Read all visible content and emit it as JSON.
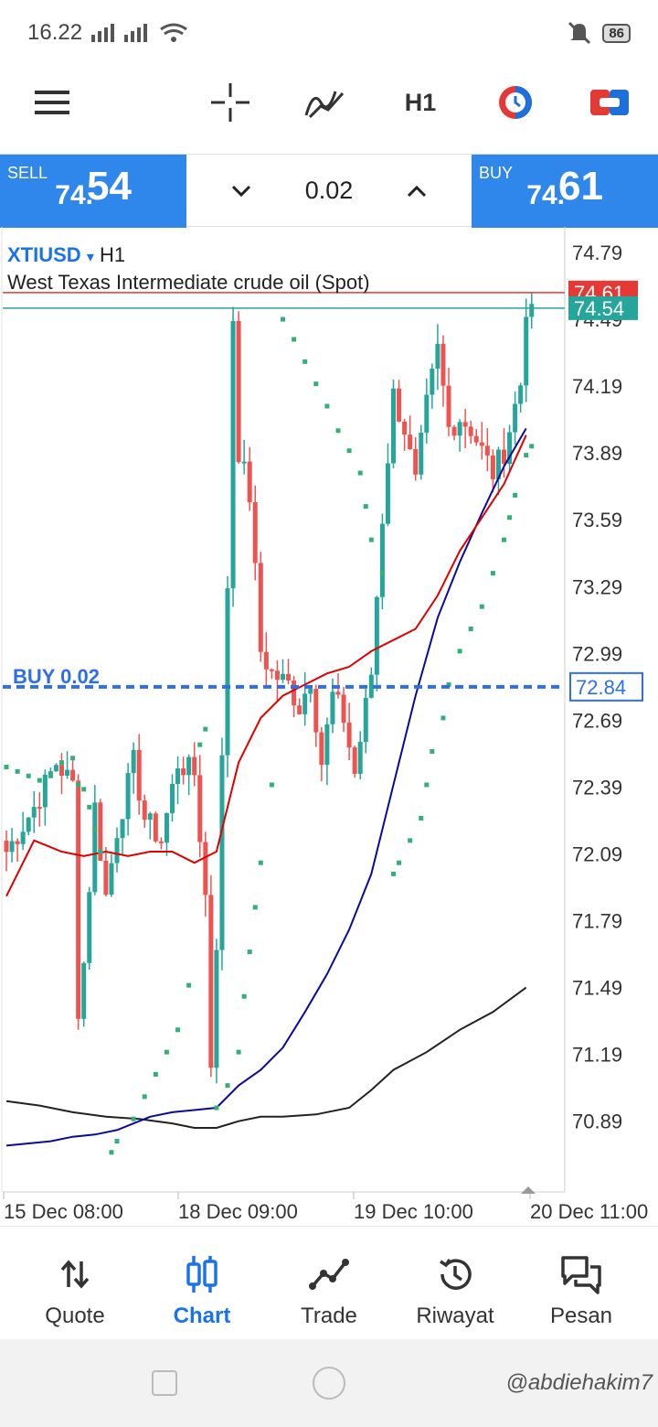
{
  "status": {
    "time": "16.22",
    "battery": "86"
  },
  "toolbar": {
    "timeframe": "H1",
    "icons": [
      "crosshair-icon",
      "indicators-icon",
      "timeframe",
      "chart-color-icon",
      "trade-toggle-icon"
    ]
  },
  "trade_panel": {
    "sell_label": "SELL",
    "sell_price_small": "74.",
    "sell_price_big": "54",
    "buy_label": "BUY",
    "buy_price_small": "74.",
    "buy_price_big": "61",
    "lot": "0.02"
  },
  "chart": {
    "symbol": "XTIUSD",
    "symbol_arrow": "▾",
    "timeframe": "H1",
    "description": "West Texas Intermediate crude oil (Spot)",
    "order_label": "BUY 0.02",
    "order_price": "72.84",
    "ask_tag": "74.61",
    "bid_tag": "74.54",
    "colors": {
      "bull": "#26a69a",
      "bear": "#ef5350",
      "ask_line": "#e53935",
      "bid_line": "#26a69a",
      "order_line": "#2f6fe6",
      "ma_red": "#e00000",
      "ma_blue": "#0a0a9e",
      "ma_black": "#222222",
      "sar": "#33b07a"
    }
  },
  "chart_data": {
    "type": "candlestick",
    "y_ticks": [
      "74.79",
      "74.49",
      "74.19",
      "73.89",
      "73.59",
      "73.29",
      "72.99",
      "72.69",
      "72.39",
      "72.09",
      "71.79",
      "71.49",
      "71.19",
      "70.89"
    ],
    "x_ticks": [
      "15 Dec 08:00",
      "18 Dec 09:00",
      "19 Dec 10:00",
      "20 Dec 11:00"
    ],
    "ylim": [
      70.72,
      74.82
    ],
    "ask": 74.61,
    "bid": 74.54,
    "order_price": 72.84,
    "anchors": [
      [
        0,
        72.1
      ],
      [
        5,
        72.3
      ],
      [
        9,
        72.5
      ],
      [
        12,
        72.4
      ],
      [
        13,
        71.4
      ],
      [
        14,
        71.6
      ],
      [
        16,
        72.3
      ],
      [
        18,
        71.9
      ],
      [
        20,
        72.2
      ],
      [
        23,
        72.5
      ],
      [
        25,
        72.25
      ],
      [
        28,
        72.15
      ],
      [
        31,
        72.5
      ],
      [
        34,
        72.45
      ],
      [
        36,
        71.9
      ],
      [
        37,
        71.15
      ],
      [
        38,
        71.7
      ],
      [
        40,
        73.3
      ],
      [
        41,
        74.5
      ],
      [
        42,
        73.9
      ],
      [
        44,
        73.7
      ],
      [
        46,
        73.0
      ],
      [
        48,
        72.9
      ],
      [
        51,
        72.85
      ],
      [
        53,
        72.75
      ],
      [
        55,
        72.88
      ],
      [
        57,
        72.5
      ],
      [
        59,
        72.8
      ],
      [
        61,
        72.7
      ],
      [
        63,
        72.45
      ],
      [
        66,
        72.9
      ],
      [
        68,
        73.6
      ],
      [
        70,
        74.15
      ],
      [
        72,
        74.0
      ],
      [
        74,
        73.75
      ],
      [
        76,
        74.1
      ],
      [
        78,
        74.35
      ],
      [
        80,
        74.0
      ],
      [
        82,
        74.05
      ],
      [
        84,
        74.0
      ],
      [
        86,
        73.9
      ],
      [
        88,
        73.8
      ],
      [
        90,
        73.9
      ],
      [
        93,
        74.2
      ],
      [
        94,
        74.55
      ],
      [
        95,
        74.5
      ]
    ],
    "candle_count": 96,
    "indicators": {
      "ma_red": [
        [
          0,
          71.9
        ],
        [
          5,
          72.15
        ],
        [
          10,
          72.1
        ],
        [
          14,
          72.08
        ],
        [
          18,
          72.1
        ],
        [
          22,
          72.08
        ],
        [
          26,
          72.1
        ],
        [
          30,
          72.1
        ],
        [
          34,
          72.05
        ],
        [
          38,
          72.1
        ],
        [
          42,
          72.5
        ],
        [
          46,
          72.7
        ],
        [
          50,
          72.8
        ],
        [
          54,
          72.85
        ],
        [
          58,
          72.9
        ],
        [
          62,
          72.93
        ],
        [
          66,
          73.0
        ],
        [
          70,
          73.05
        ],
        [
          74,
          73.1
        ],
        [
          78,
          73.25
        ],
        [
          82,
          73.45
        ],
        [
          86,
          73.6
        ],
        [
          90,
          73.75
        ],
        [
          94,
          73.97
        ]
      ],
      "ma_blue": [
        [
          0,
          70.78
        ],
        [
          8,
          70.8
        ],
        [
          12,
          70.82
        ],
        [
          16,
          70.83
        ],
        [
          20,
          70.85
        ],
        [
          26,
          70.91
        ],
        [
          30,
          70.93
        ],
        [
          34,
          70.94
        ],
        [
          38,
          70.95
        ],
        [
          42,
          71.05
        ],
        [
          46,
          71.12
        ],
        [
          50,
          71.22
        ],
        [
          54,
          71.38
        ],
        [
          58,
          71.55
        ],
        [
          62,
          71.75
        ],
        [
          66,
          72.0
        ],
        [
          70,
          72.4
        ],
        [
          74,
          72.8
        ],
        [
          78,
          73.15
        ],
        [
          82,
          73.4
        ],
        [
          86,
          73.62
        ],
        [
          90,
          73.83
        ],
        [
          94,
          74.0
        ]
      ],
      "ma_black": [
        [
          0,
          70.98
        ],
        [
          6,
          70.96
        ],
        [
          12,
          70.93
        ],
        [
          18,
          70.91
        ],
        [
          24,
          70.9
        ],
        [
          30,
          70.88
        ],
        [
          34,
          70.86
        ],
        [
          36,
          70.86
        ],
        [
          38,
          70.86
        ],
        [
          42,
          70.89
        ],
        [
          46,
          70.91
        ],
        [
          50,
          70.91
        ],
        [
          56,
          70.92
        ],
        [
          62,
          70.95
        ],
        [
          66,
          71.03
        ],
        [
          70,
          71.12
        ],
        [
          76,
          71.2
        ],
        [
          82,
          71.3
        ],
        [
          88,
          71.38
        ],
        [
          94,
          71.49
        ]
      ],
      "sar": [
        [
          0,
          72.48
        ],
        [
          2,
          72.46
        ],
        [
          4,
          72.44
        ],
        [
          6,
          72.42
        ],
        [
          8,
          72.44
        ],
        [
          10,
          72.5
        ],
        [
          12,
          72.52
        ],
        [
          13,
          72.4
        ],
        [
          14,
          72.38
        ],
        [
          15,
          72.3
        ],
        [
          16,
          72.2
        ],
        [
          17,
          72.1
        ],
        [
          19,
          70.75
        ],
        [
          20,
          70.8
        ],
        [
          23,
          70.9
        ],
        [
          25,
          71.0
        ],
        [
          27,
          71.1
        ],
        [
          29,
          71.2
        ],
        [
          31,
          71.3
        ],
        [
          33,
          71.5
        ],
        [
          35,
          72.58
        ],
        [
          36,
          72.65
        ],
        [
          38,
          70.95
        ],
        [
          40,
          71.05
        ],
        [
          42,
          71.2
        ],
        [
          43,
          71.45
        ],
        [
          44,
          71.65
        ],
        [
          45,
          71.85
        ],
        [
          46,
          72.05
        ],
        [
          48,
          72.4
        ],
        [
          50,
          74.49
        ],
        [
          52,
          74.4
        ],
        [
          54,
          74.3
        ],
        [
          56,
          74.2
        ],
        [
          58,
          74.1
        ],
        [
          60,
          73.99
        ],
        [
          62,
          73.9
        ],
        [
          64,
          73.8
        ],
        [
          65,
          73.65
        ],
        [
          66,
          73.5
        ],
        [
          68,
          73.35
        ],
        [
          70,
          72.0
        ],
        [
          71,
          72.05
        ],
        [
          73,
          72.15
        ],
        [
          75,
          72.25
        ],
        [
          76,
          72.4
        ],
        [
          77,
          72.55
        ],
        [
          79,
          72.7
        ],
        [
          80,
          72.85
        ],
        [
          82,
          73.0
        ],
        [
          84,
          73.1
        ],
        [
          86,
          73.2
        ],
        [
          88,
          73.35
        ],
        [
          90,
          73.5
        ],
        [
          91,
          73.6
        ],
        [
          92,
          73.7
        ],
        [
          94,
          73.88
        ],
        [
          95,
          73.92
        ]
      ]
    }
  },
  "nav": {
    "items": [
      {
        "label": "Quote",
        "icon": "quote-icon"
      },
      {
        "label": "Chart",
        "icon": "chart-icon"
      },
      {
        "label": "Trade",
        "icon": "trade-icon"
      },
      {
        "label": "Riwayat",
        "icon": "history-icon"
      },
      {
        "label": "Pesan",
        "icon": "messages-icon"
      }
    ],
    "active": 1
  },
  "watermark": "@abdiehakim7"
}
